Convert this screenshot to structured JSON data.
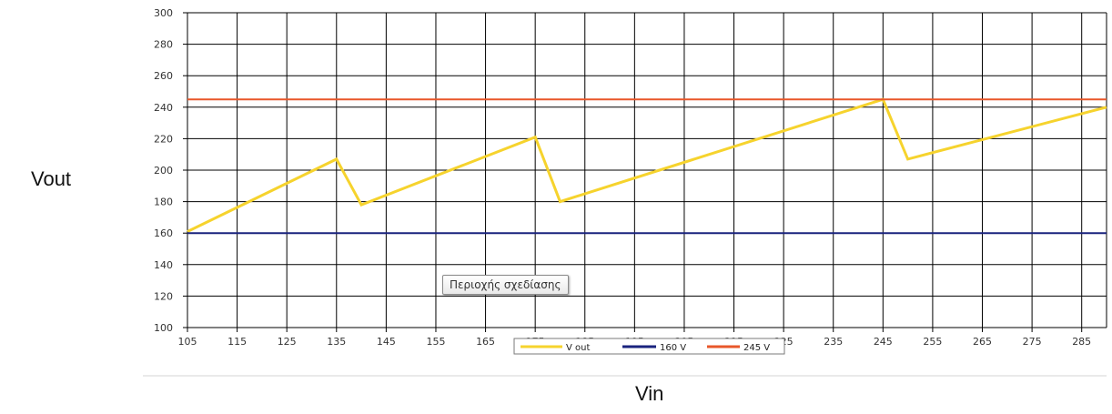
{
  "chart_data": {
    "type": "line",
    "xlabel": "Vin",
    "ylabel": "Vout",
    "xlim": [
      105,
      290
    ],
    "ylim": [
      100,
      300
    ],
    "x_ticks": [
      105,
      115,
      125,
      135,
      145,
      155,
      165,
      175,
      185,
      195,
      205,
      215,
      225,
      235,
      245,
      255,
      265,
      275,
      285
    ],
    "y_ticks": [
      100,
      120,
      140,
      160,
      180,
      200,
      220,
      240,
      260,
      280,
      300
    ],
    "grid": true,
    "legend_position": "bottom",
    "series": [
      {
        "name": "V out",
        "color": "#f6d32d",
        "points": [
          [
            105,
            161
          ],
          [
            135,
            207
          ],
          [
            140,
            178
          ],
          [
            175,
            221
          ],
          [
            180,
            180
          ],
          [
            245,
            245
          ],
          [
            250,
            207
          ],
          [
            290,
            240
          ]
        ]
      },
      {
        "name": "160 V",
        "color": "#1a237e",
        "points": [
          [
            105,
            160
          ],
          [
            290,
            160
          ]
        ]
      },
      {
        "name": "245 V",
        "color": "#e8572a",
        "points": [
          [
            105,
            245
          ],
          [
            290,
            245
          ]
        ]
      }
    ]
  },
  "tooltip": {
    "text": "Περιοχής σχεδίασης"
  }
}
